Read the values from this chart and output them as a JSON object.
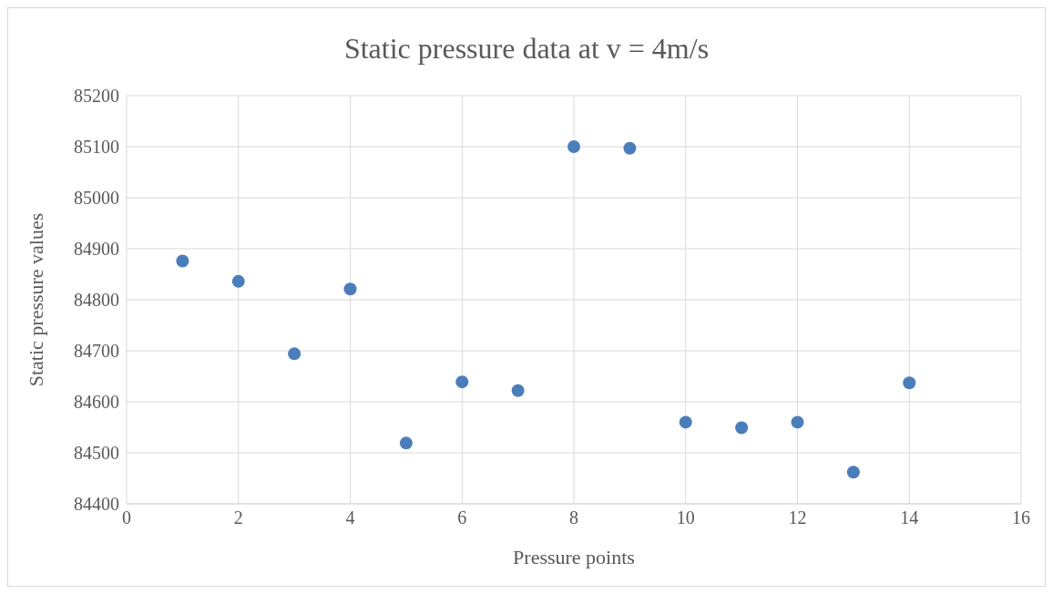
{
  "chart_data": {
    "type": "scatter",
    "title": "Static pressure data at v = 4m/s",
    "xlabel": "Pressure points",
    "ylabel": "Static pressure values",
    "x": [
      1,
      2,
      3,
      4,
      5,
      6,
      7,
      8,
      9,
      10,
      11,
      12,
      13,
      14
    ],
    "series": [
      {
        "color": "#4a7ebb",
        "values": [
          84876,
          84836,
          84694,
          84821,
          84519,
          84639,
          84622,
          85100,
          85097,
          84560,
          84549,
          84560,
          84462,
          84637
        ]
      }
    ],
    "xlim": [
      0,
      16
    ],
    "xticks": [
      0,
      2,
      4,
      6,
      8,
      10,
      12,
      14,
      16
    ],
    "ylim": [
      84400,
      85200
    ],
    "yticks": [
      84400,
      84500,
      84600,
      84700,
      84800,
      84900,
      85000,
      85100,
      85200
    ],
    "grid": true,
    "legend": false,
    "marker": "circle"
  }
}
